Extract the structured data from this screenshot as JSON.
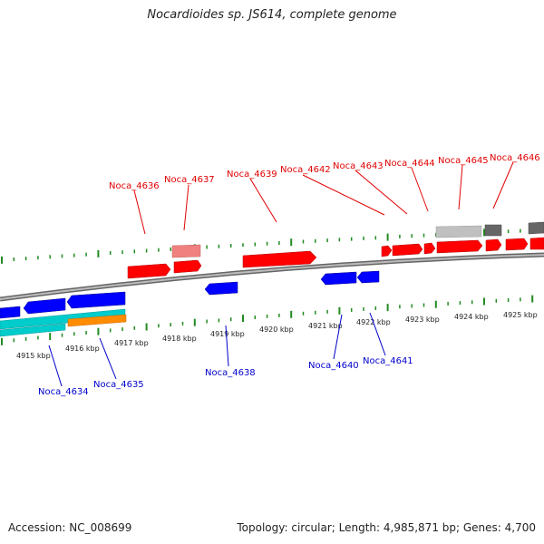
{
  "title": "Nocardioides sp. JS614, complete genome",
  "footer": {
    "accession": "Accession: NC_008699",
    "summary": "Topology: circular; Length: 4,985,871 bp; Genes: 4,700"
  },
  "colors": {
    "forward_gene": "#ff0000",
    "reverse_gene": "#0000ff",
    "faded_gene": "#f08080",
    "light_gray_feature": "#c0c0c0",
    "dark_gray_feature": "#666666",
    "cyan_feature": "#00cccc",
    "orange_feature": "#ff8c00",
    "tick": "#228b22",
    "backbone": "#808080"
  },
  "kbp_labels": [
    "4915 kbp",
    "4916 kbp",
    "4917 kbp",
    "4918 kbp",
    "4919 kbp",
    "4920 kbp",
    "4921 kbp",
    "4922 kbp",
    "4923 kbp",
    "4924 kbp",
    "4925 kbp"
  ],
  "top_labels": [
    "Noca_4636",
    "Noca_4637",
    "Noca_4639",
    "Noca_4642",
    "Noca_4643",
    "Noca_4644",
    "Noca_4645",
    "Noca_4646"
  ],
  "bottom_labels": [
    "Noca_4634",
    "Noca_4635",
    "Noca_4638",
    "Noca_4640",
    "Noca_4641"
  ]
}
